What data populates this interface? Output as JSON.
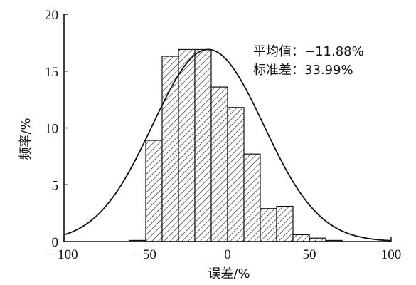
{
  "chart_data": {
    "type": "bar",
    "title": "",
    "xlabel": "误差/%",
    "ylabel": "频率/%",
    "xlim": [
      -100,
      100
    ],
    "ylim": [
      0,
      20
    ],
    "xticks": [
      -100,
      -50,
      0,
      50,
      100
    ],
    "yticks": [
      0,
      5,
      10,
      15,
      20
    ],
    "bin_edges": [
      -60,
      -50,
      -40,
      -30,
      -20,
      -10,
      0,
      10,
      20,
      30,
      40,
      50,
      60,
      70
    ],
    "values": [
      0.1,
      8.9,
      16.3,
      16.9,
      16.9,
      13.6,
      11.8,
      7.7,
      2.9,
      3.1,
      0.6,
      0.3,
      0.1
    ],
    "fit_curve": {
      "type": "normal",
      "mean": -11.88,
      "std": 33.99,
      "peak": 16.9
    },
    "annotations": [
      {
        "id": "mean",
        "text": "平均值：−11.88%"
      },
      {
        "id": "std",
        "text": "标准差：33.99%"
      }
    ],
    "grid": false,
    "legend": "none"
  }
}
